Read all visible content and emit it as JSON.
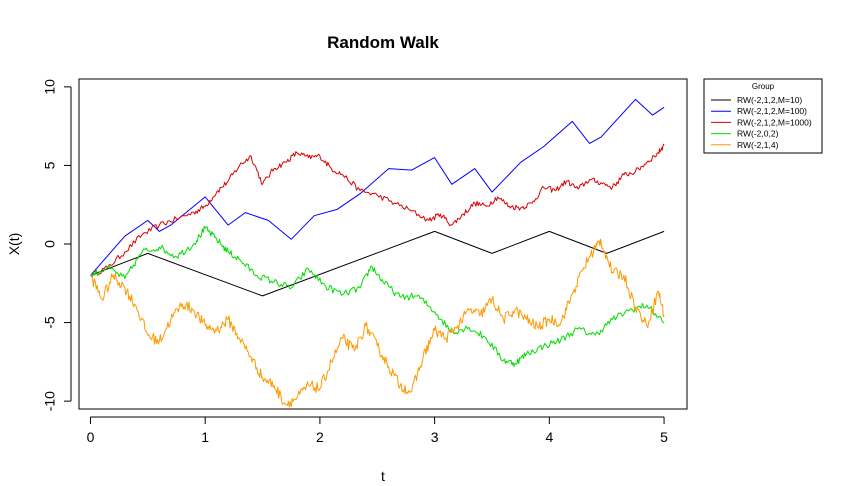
{
  "chart_data": {
    "type": "line",
    "title": "Random Walk",
    "xlabel": "t",
    "ylabel": "X(t)",
    "xlim": [
      -0.1,
      5.2
    ],
    "ylim": [
      -10.5,
      10.5
    ],
    "xticks": [
      0,
      1,
      2,
      3,
      4,
      5
    ],
    "yticks": [
      -10,
      -5,
      0,
      5,
      10
    ],
    "grid": false,
    "legend": {
      "title": "Group",
      "position": "outside-top-right",
      "entries": [
        {
          "label": "RW(-2,1,2,M=10)",
          "color": "#000000"
        },
        {
          "label": "RW(-2,1,2,M=100)",
          "color": "#0000ff"
        },
        {
          "label": "RW(-2,1,2,M=1000)",
          "color": "#dd0000"
        },
        {
          "label": "RW(-2,0,2)",
          "color": "#00dd00"
        },
        {
          "label": "RW(-2,1,4)",
          "color": "#ff9900"
        }
      ]
    },
    "series": [
      {
        "color": "#000000",
        "x": [
          0,
          0.5,
          1.5,
          3.0,
          3.5,
          4.0,
          4.5,
          5.0
        ],
        "y": [
          -2,
          -0.6,
          -3.3,
          0.8,
          -0.6,
          0.8,
          -0.6,
          0.8
        ]
      },
      {
        "color": "#0000ff",
        "x": [
          0,
          0.3,
          0.5,
          0.6,
          0.7,
          1.0,
          1.2,
          1.35,
          1.55,
          1.75,
          1.95,
          2.15,
          2.35,
          2.6,
          2.8,
          3.0,
          3.15,
          3.35,
          3.5,
          3.75,
          3.95,
          4.2,
          4.35,
          4.45,
          4.75,
          4.9,
          5.0
        ],
        "y": [
          -2,
          0.5,
          1.5,
          0.8,
          1.2,
          3.0,
          1.2,
          2.0,
          1.5,
          0.3,
          1.8,
          2.2,
          3.2,
          4.8,
          4.7,
          5.5,
          3.8,
          4.8,
          3.3,
          5.2,
          6.2,
          7.8,
          6.4,
          6.8,
          9.2,
          8.2,
          8.7
        ]
      },
      {
        "color": "#dd0000",
        "x": [
          0,
          0.15,
          0.3,
          0.45,
          0.6,
          0.75,
          0.9,
          1.0,
          1.1,
          1.2,
          1.3,
          1.4,
          1.5,
          1.6,
          1.7,
          1.8,
          1.9,
          2.0,
          2.1,
          2.2,
          2.35,
          2.5,
          2.65,
          2.8,
          2.95,
          3.05,
          3.15,
          3.25,
          3.35,
          3.45,
          3.55,
          3.65,
          3.75,
          3.85,
          3.95,
          4.05,
          4.15,
          4.25,
          4.35,
          4.45,
          4.55,
          4.65,
          4.75,
          4.85,
          4.95,
          5.0
        ],
        "y": [
          -2,
          -1.5,
          -0.5,
          0.6,
          1.2,
          1.6,
          2.0,
          2.4,
          3.3,
          4.0,
          5.0,
          5.6,
          3.8,
          4.8,
          5.2,
          5.8,
          5.5,
          5.6,
          4.8,
          4.4,
          3.4,
          3.1,
          2.6,
          2.1,
          1.5,
          1.9,
          1.2,
          1.9,
          2.6,
          2.4,
          3.0,
          2.4,
          2.3,
          2.6,
          3.6,
          3.4,
          4.0,
          3.5,
          4.1,
          3.9,
          3.6,
          4.4,
          4.6,
          5.2,
          5.8,
          6.3
        ]
      },
      {
        "color": "#00dd00",
        "x": [
          0,
          0.15,
          0.3,
          0.45,
          0.6,
          0.75,
          0.9,
          1.0,
          1.1,
          1.2,
          1.3,
          1.45,
          1.6,
          1.75,
          1.9,
          2.05,
          2.2,
          2.35,
          2.45,
          2.55,
          2.7,
          2.85,
          3.0,
          3.15,
          3.3,
          3.45,
          3.6,
          3.7,
          3.8,
          3.95,
          4.1,
          4.25,
          4.4,
          4.55,
          4.7,
          4.85,
          5.0
        ],
        "y": [
          -2,
          -1.5,
          -2.2,
          -0.5,
          -0.2,
          -0.8,
          0.0,
          1.0,
          0.3,
          -0.5,
          -1.0,
          -2.0,
          -2.4,
          -2.8,
          -1.6,
          -2.7,
          -3.2,
          -2.8,
          -1.4,
          -2.4,
          -3.4,
          -3.3,
          -4.3,
          -5.6,
          -5.3,
          -6.0,
          -7.4,
          -7.6,
          -7.0,
          -6.5,
          -6.1,
          -5.4,
          -5.8,
          -4.8,
          -4.2,
          -3.9,
          -5.0
        ]
      },
      {
        "color": "#ff9900",
        "x": [
          0,
          0.1,
          0.2,
          0.3,
          0.4,
          0.5,
          0.6,
          0.7,
          0.8,
          0.9,
          1.0,
          1.1,
          1.2,
          1.3,
          1.4,
          1.5,
          1.6,
          1.7,
          1.8,
          1.9,
          2.0,
          2.1,
          2.2,
          2.3,
          2.4,
          2.5,
          2.6,
          2.7,
          2.8,
          2.9,
          3.0,
          3.1,
          3.2,
          3.3,
          3.4,
          3.5,
          3.6,
          3.7,
          3.8,
          3.9,
          4.0,
          4.1,
          4.2,
          4.3,
          4.4,
          4.45,
          4.55,
          4.65,
          4.75,
          4.85,
          4.95,
          5.0
        ],
        "y": [
          -2,
          -3.5,
          -2.0,
          -2.8,
          -4.0,
          -5.8,
          -6.2,
          -4.8,
          -3.8,
          -4.2,
          -5.2,
          -5.5,
          -4.8,
          -6.0,
          -7.2,
          -8.5,
          -9.0,
          -10.2,
          -9.8,
          -9.0,
          -9.2,
          -7.5,
          -6.0,
          -6.8,
          -5.2,
          -6.5,
          -7.8,
          -9.0,
          -9.4,
          -7.2,
          -5.5,
          -6.0,
          -5.2,
          -4.2,
          -4.5,
          -3.5,
          -4.8,
          -4.2,
          -4.8,
          -5.3,
          -4.8,
          -5.0,
          -3.2,
          -1.5,
          -0.2,
          0.2,
          -1.8,
          -2.0,
          -4.0,
          -5.2,
          -3.0,
          -4.5
        ]
      }
    ]
  }
}
